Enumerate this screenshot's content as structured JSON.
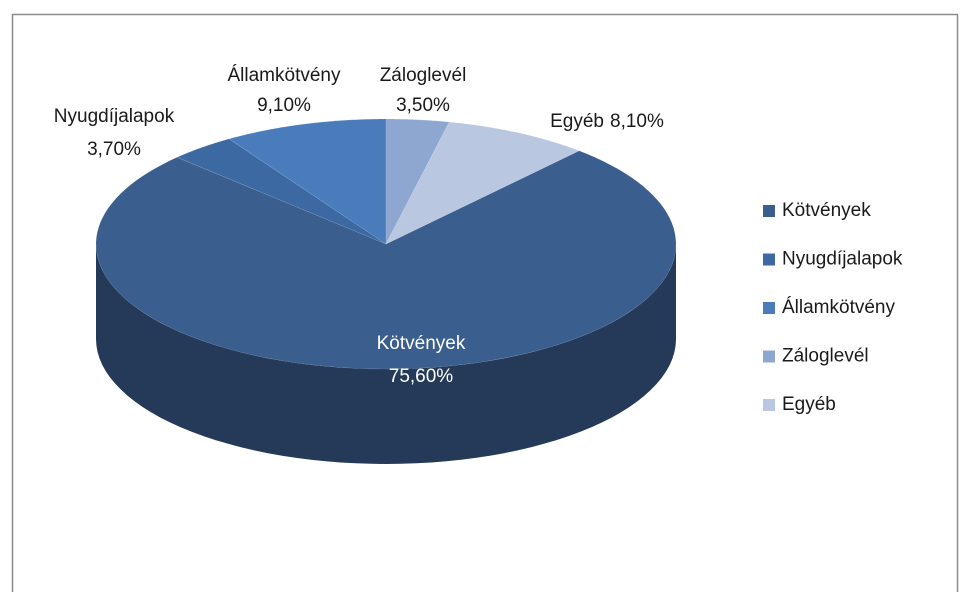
{
  "chart_data": {
    "type": "pie",
    "categories": [
      "Kötvények",
      "Nyugdíjalapok",
      "Államkötvény",
      "Záloglevél",
      "Egyéb"
    ],
    "values": [
      75.6,
      3.7,
      9.1,
      3.5,
      8.1
    ],
    "value_labels": [
      "75,60%",
      "3,70%",
      "9,10%",
      "3,50%",
      "8,10%"
    ],
    "colors": [
      "#3a5e8e",
      "#3c69a1",
      "#4a7cbc",
      "#8ea7d0",
      "#b9c8e0"
    ],
    "legend": "right"
  }
}
